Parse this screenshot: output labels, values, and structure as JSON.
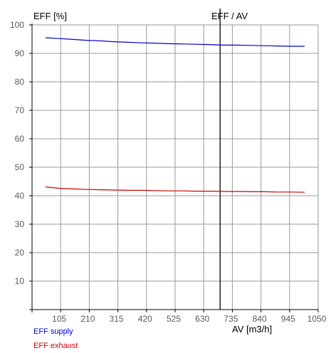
{
  "chart_data": {
    "type": "line",
    "title": "EFF / AV",
    "xlabel": "AV [m3/h]",
    "ylabel": "EFF [%]",
    "xlim": [
      0,
      1050
    ],
    "ylim": [
      0,
      100
    ],
    "x_ticks": [
      105,
      210,
      315,
      420,
      525,
      630,
      735,
      840,
      945,
      1050
    ],
    "y_ticks": [
      10,
      20,
      30,
      40,
      50,
      60,
      70,
      80,
      90,
      100
    ],
    "grid": true,
    "legend_position": "bottom-left",
    "marker_x": 690,
    "series": [
      {
        "name": "EFF supply",
        "color": "#0000cc",
        "x": [
          50,
          100,
          150,
          200,
          250,
          300,
          350,
          400,
          450,
          500,
          550,
          600,
          650,
          700,
          750,
          800,
          850,
          900,
          950,
          1000
        ],
        "y": [
          95.5,
          95.2,
          94.9,
          94.6,
          94.4,
          94.1,
          93.9,
          93.7,
          93.6,
          93.4,
          93.3,
          93.2,
          93.1,
          92.9,
          92.9,
          92.8,
          92.7,
          92.6,
          92.5,
          92.5
        ]
      },
      {
        "name": "EFF exhaust",
        "color": "#cc0000",
        "x": [
          50,
          100,
          150,
          200,
          250,
          300,
          350,
          400,
          450,
          500,
          550,
          600,
          650,
          700,
          750,
          800,
          850,
          900,
          950,
          1000
        ],
        "y": [
          43.1,
          42.6,
          42.4,
          42.2,
          42.1,
          42.0,
          41.9,
          41.9,
          41.8,
          41.7,
          41.7,
          41.6,
          41.6,
          41.5,
          41.5,
          41.4,
          41.4,
          41.3,
          41.3,
          41.2
        ]
      }
    ]
  }
}
